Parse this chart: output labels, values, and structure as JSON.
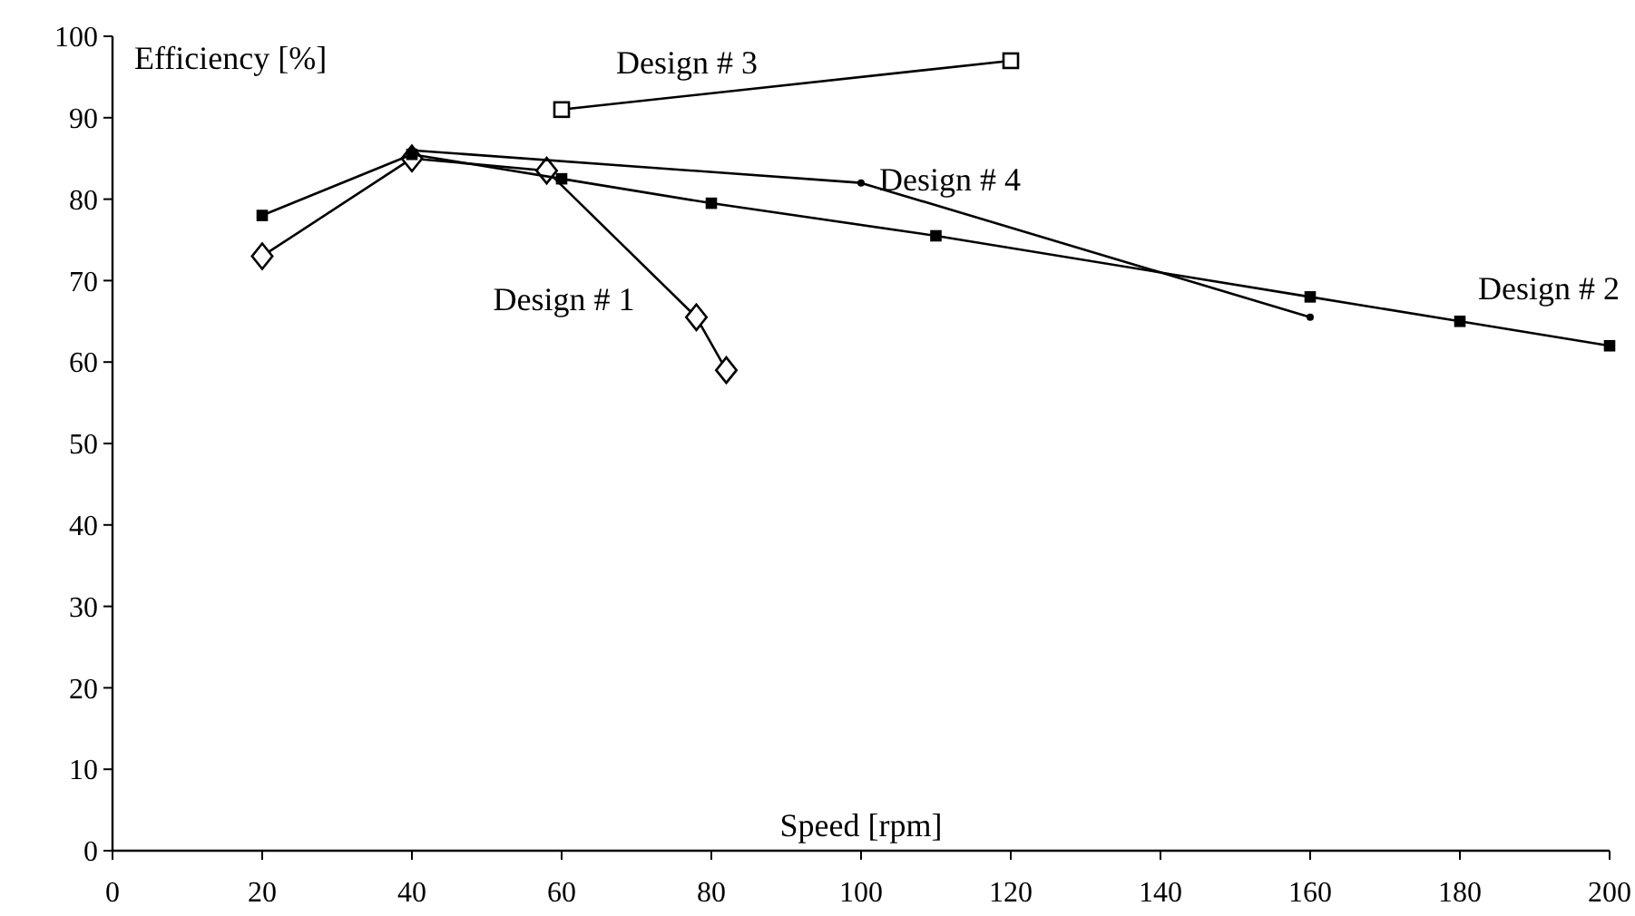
{
  "chart_data": {
    "type": "line",
    "xlabel": "Speed [rpm]",
    "ylabel": "Efficiency [%]",
    "xlim": [
      0,
      200
    ],
    "xticks": [
      0,
      20,
      40,
      60,
      80,
      100,
      120,
      140,
      160,
      180,
      200
    ],
    "ylim": [
      0,
      100
    ],
    "yticks": [
      0,
      10,
      20,
      30,
      40,
      50,
      60,
      70,
      80,
      90,
      100
    ],
    "grid": false,
    "legend": false,
    "series": [
      {
        "name": "Design # 1",
        "color": "#000000",
        "marker": "diamond",
        "x": [
          20,
          40,
          58,
          78,
          82
        ],
        "values": [
          73,
          85,
          83.5,
          65.5,
          59
        ]
      },
      {
        "name": "Design # 2",
        "color": "#000000",
        "marker": "square",
        "x": [
          20,
          40,
          60,
          80,
          110,
          160,
          180,
          200
        ],
        "values": [
          78,
          85.5,
          82.5,
          79.5,
          75.5,
          68,
          65,
          62
        ]
      },
      {
        "name": "Design # 3",
        "color": "#000000",
        "marker": "square",
        "x": [
          60,
          120
        ],
        "values": [
          91,
          97
        ]
      },
      {
        "name": "Design # 4",
        "color": "#000000",
        "marker": "circle",
        "x": [
          40,
          100,
          160
        ],
        "values": [
          86,
          82,
          65.5
        ]
      }
    ]
  }
}
